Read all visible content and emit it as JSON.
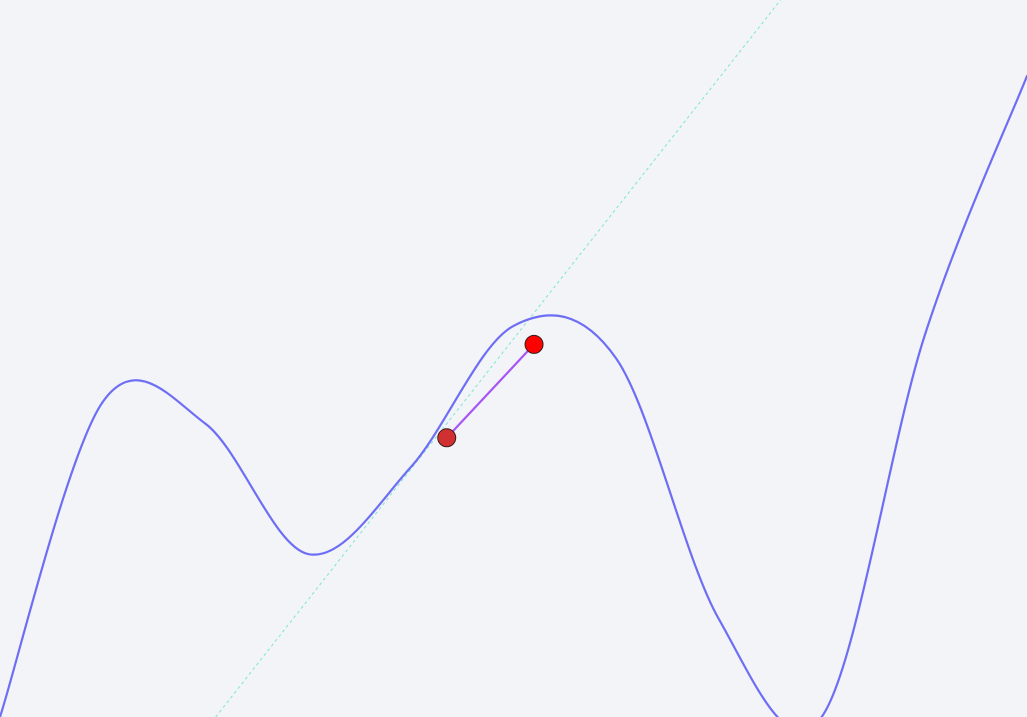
{
  "chart_data": {
    "type": "line",
    "series": [
      {
        "role": "function-curve",
        "color": "#6e6ef5",
        "x": [
          0,
          1,
          2,
          3,
          4,
          5,
          6,
          7,
          8,
          9,
          10
        ],
        "y": [
          -1.6,
          1.3,
          1.1,
          -0.1,
          0.7,
          2.0,
          1.7,
          -0.7,
          -1.6,
          1.9,
          4.3
        ]
      },
      {
        "role": "secant-segment",
        "color": "#a855f7",
        "x": [
          4.35,
          5.2
        ],
        "y": [
          0.97,
          1.83
        ]
      },
      {
        "role": "tangent-line",
        "color": "#7de6cf",
        "style": "dotted",
        "x": [
          2.1,
          7.6
        ],
        "y": [
          -1.6,
          5.0
        ]
      }
    ],
    "points": [
      {
        "role": "point-a",
        "x": 4.35,
        "y": 0.97,
        "color": "#d03030",
        "interactable": true
      },
      {
        "role": "point-b",
        "x": 5.2,
        "y": 1.83,
        "color": "#ff0000",
        "interactable": true
      }
    ],
    "xlim": [
      0,
      10
    ],
    "ylim": [
      -1.6,
      5.0
    ],
    "grid": false,
    "legend": "none",
    "title": "",
    "xlabel": "",
    "ylabel": ""
  },
  "colors": {
    "background": "#f2f4f7",
    "curve": "#6e6ef5",
    "secant": "#a855f7",
    "tangent": "#7de6cf",
    "point_a": "#d03030",
    "point_b": "#ff0000"
  }
}
